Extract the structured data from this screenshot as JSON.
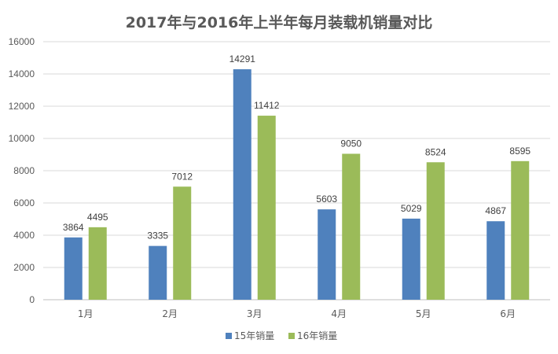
{
  "chart_data": {
    "type": "bar",
    "title": "2017年与2016年上半年每月装载机销量对比",
    "categories": [
      "1月",
      "2月",
      "3月",
      "4月",
      "5月",
      "6月"
    ],
    "series": [
      {
        "name": "15年销量",
        "color": "#4f81bd",
        "values": [
          3864,
          3335,
          14291,
          5603,
          5029,
          4867
        ]
      },
      {
        "name": "16年销量",
        "color": "#9bbb59",
        "values": [
          4495,
          7012,
          11412,
          9050,
          8524,
          8595
        ]
      }
    ],
    "yticks": [
      "0",
      "2000",
      "4000",
      "6000",
      "8000",
      "10000",
      "12000",
      "14000",
      "16000"
    ],
    "ylim": [
      0,
      16000
    ],
    "grid": true,
    "legend": "bottom"
  }
}
